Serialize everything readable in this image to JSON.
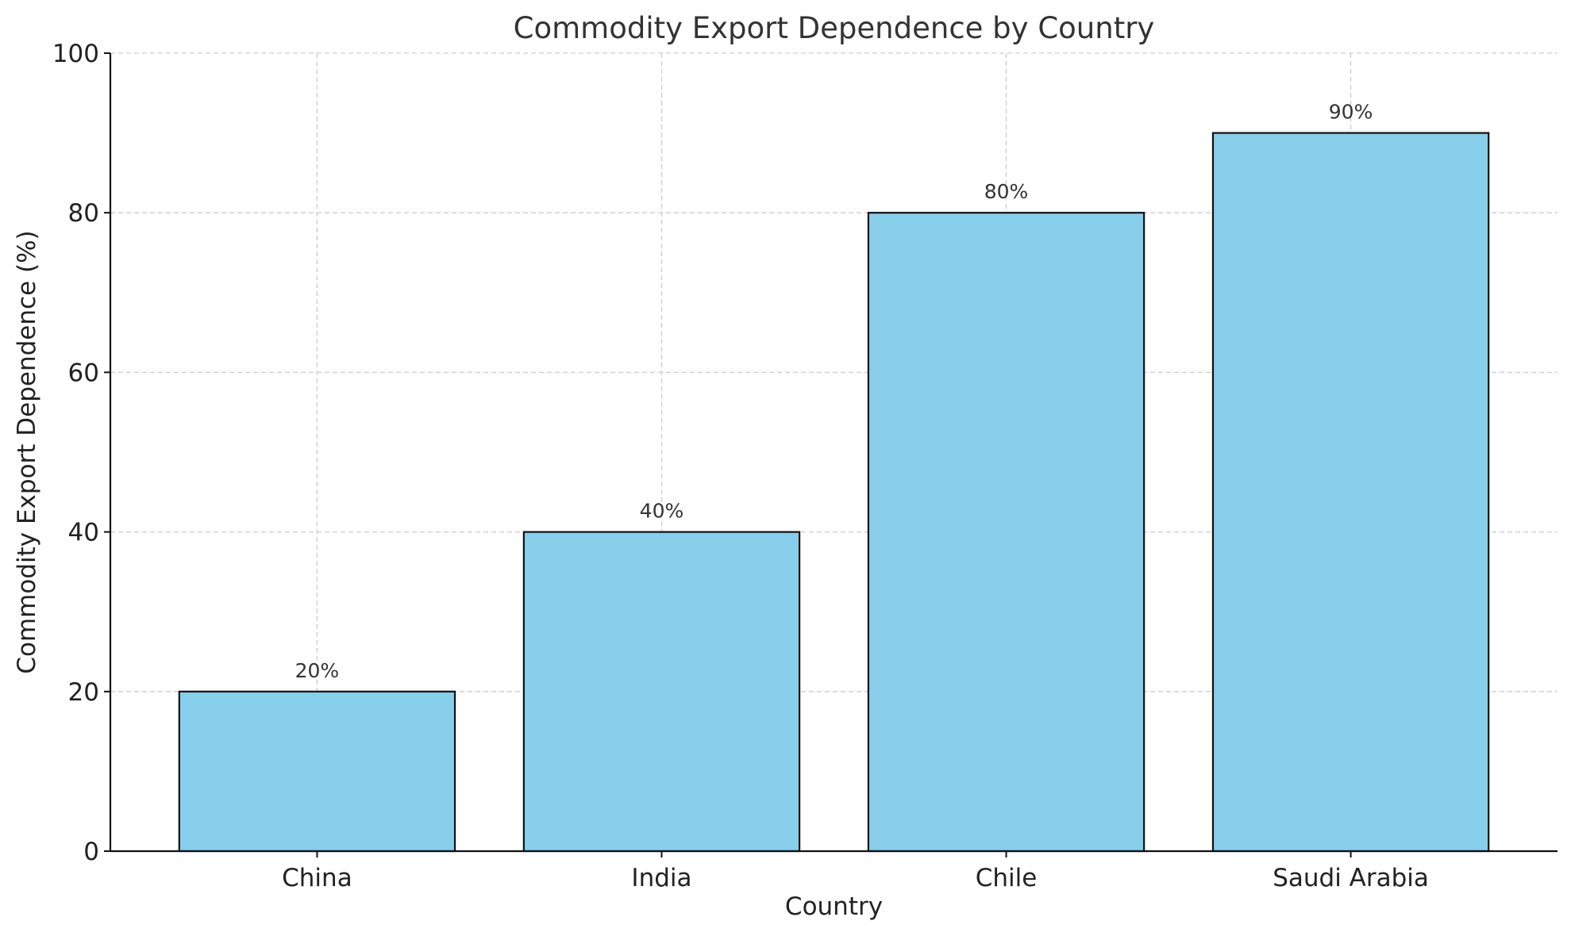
{
  "chart_data": {
    "type": "bar",
    "title": "Commodity Export Dependence by Country",
    "xlabel": "Country",
    "ylabel": "Commodity Export Dependence (%)",
    "categories": [
      "China",
      "India",
      "Chile",
      "Saudi Arabia"
    ],
    "values": [
      20,
      40,
      80,
      90
    ],
    "data_labels": [
      "20%",
      "40%",
      "80%",
      "90%"
    ],
    "ylim": [
      0,
      100
    ],
    "yticks": [
      0,
      20,
      40,
      60,
      80,
      100
    ],
    "ytick_labels": [
      "0",
      "20",
      "40",
      "60",
      "80",
      "100"
    ],
    "grid": true,
    "bar_color": "#87ceeb",
    "edge_color": "#111111"
  }
}
